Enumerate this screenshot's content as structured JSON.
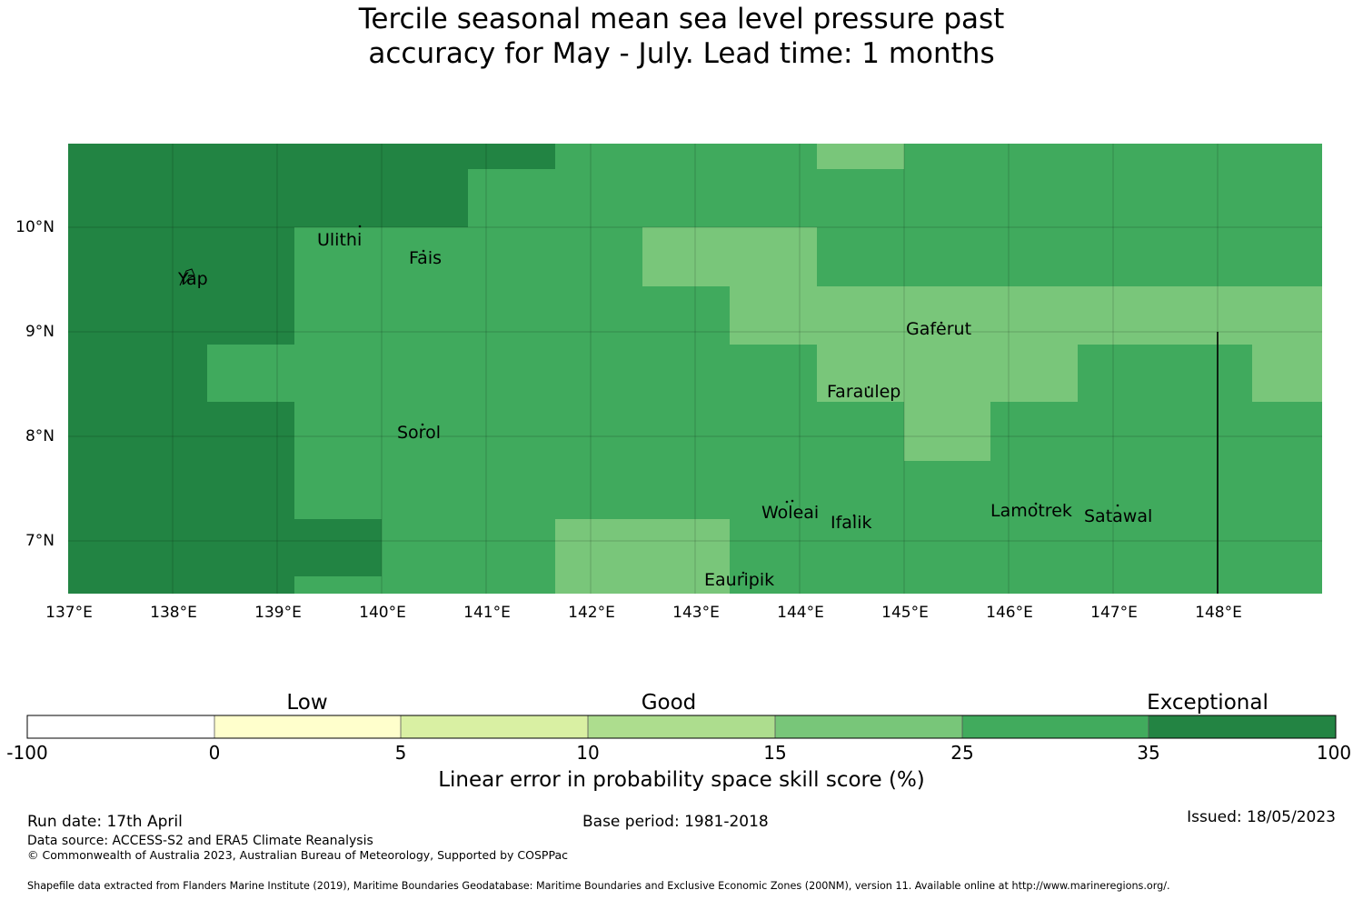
{
  "title_lines": [
    "Tercile seasonal mean sea level pressure past",
    "accuracy for May - July. Lead time: 1 months"
  ],
  "map": {
    "lon_ticks": [
      "137°E",
      "138°E",
      "139°E",
      "140°E",
      "141°E",
      "142°E",
      "143°E",
      "144°E",
      "145°E",
      "146°E",
      "147°E",
      "148°E"
    ],
    "lat_ticks": [
      "10°N",
      "9°N",
      "8°N",
      "7°N"
    ],
    "places": {
      "yap": "Yap",
      "ulithi": "Ulithi",
      "fais": "Fais",
      "gaferut": "Gaferut",
      "faraulep": "Faraulep",
      "sorol": "Sorol",
      "woleai": "Woleai",
      "ifalik": "Ifalik",
      "lamotrek": "Lamotrek",
      "satawal": "Satawal",
      "eauripik": "Eauripik"
    },
    "colors": {
      "exceptional": "#228443",
      "band_25_35": "#40aa5d",
      "band_15_25": "#79c67a"
    }
  },
  "colorbar": {
    "categories": [
      "Low",
      "Good",
      "Exceptional"
    ],
    "ticks": [
      "-100",
      "0",
      "5",
      "10",
      "15",
      "25",
      "35",
      "100"
    ],
    "colors": [
      "#ffffff",
      "#ffffcc",
      "#d9f0a3",
      "#addd8e",
      "#78c679",
      "#41ab5d",
      "#238443"
    ],
    "title": "Linear error in probability space skill score (%)"
  },
  "footer": {
    "run_date": "Run date: 17th April",
    "base_period": "Base period: 1981-2018",
    "issued": "Issued: 18/05/2023",
    "data_source": "Data source: ACCESS-S2 and ERA5 Climate Reanalysis",
    "copyright": "© Commonwealth of Australia 2023, Australian Bureau of Meteorology, Supported by COSPPac",
    "shapefile": "Shapefile data extracted from Flanders Marine Institute (2019), Maritime Boundaries Geodatabase: Maritime Boundaries and Exclusive Economic Zones (200NM), version 11. Available online at http://www.marineregions.org/."
  }
}
